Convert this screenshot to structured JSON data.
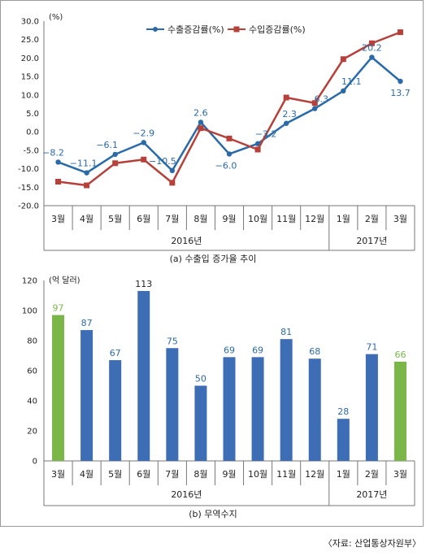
{
  "chart_data": [
    {
      "type": "line",
      "caption": "(a) 수출입 증가율 추이",
      "y_unit": "(%)",
      "ylim": [
        -20.0,
        30.0
      ],
      "y_ticks": [
        "30.0",
        "25.0",
        "20.0",
        "15.0",
        "10.0",
        "5.0",
        "0.0",
        "-5.0",
        "-10.0",
        "-15.0",
        "-20.0"
      ],
      "categories": [
        "3월",
        "4월",
        "5월",
        "6월",
        "7월",
        "8월",
        "9월",
        "10월",
        "11월",
        "12월",
        "1월",
        "2월",
        "3월"
      ],
      "year_groups": [
        {
          "label": "2016년",
          "start": 0,
          "end": 9
        },
        {
          "label": "2017년",
          "start": 10,
          "end": 12
        }
      ],
      "legend_placement": "top-center",
      "series": [
        {
          "name": "수출증감률(%)",
          "color": "#2b6aa8",
          "marker": "circle",
          "values": [
            -8.2,
            -11.1,
            -6.1,
            -2.9,
            -10.5,
            2.6,
            -6.0,
            -3.2,
            2.3,
            6.3,
            11.1,
            20.2,
            13.7
          ],
          "labels": [
            "−8.2",
            "−11.1",
            "−6.1",
            "−2.9",
            "−10.5",
            "2.6",
            "−6.0",
            "−3.2",
            "2.3",
            "6.3",
            "11.1",
            "20.2",
            "13.7"
          ]
        },
        {
          "name": "수입증감률(%)",
          "color": "#b5413a",
          "marker": "square",
          "values": [
            -13.5,
            -14.5,
            -8.5,
            -7.5,
            -13.8,
            1.0,
            -1.8,
            -4.8,
            9.3,
            7.8,
            19.7,
            24.0,
            27.0
          ]
        }
      ]
    },
    {
      "type": "bar",
      "caption": "(b) 무역수지",
      "y_unit": "(억 달러)",
      "ylim": [
        0,
        120
      ],
      "y_ticks": [
        "120",
        "100",
        "80",
        "60",
        "40",
        "20",
        "0"
      ],
      "categories": [
        "3월",
        "4월",
        "5월",
        "6월",
        "7월",
        "8월",
        "9월",
        "10월",
        "11월",
        "12월",
        "1월",
        "2월",
        "3월"
      ],
      "year_groups": [
        {
          "label": "2016년",
          "start": 0,
          "end": 9
        },
        {
          "label": "2017년",
          "start": 10,
          "end": 12
        }
      ],
      "values": [
        97,
        87,
        67,
        113,
        75,
        50,
        69,
        69,
        81,
        68,
        28,
        71,
        66
      ],
      "labels": [
        "97",
        "87",
        "67",
        "113",
        "75",
        "50",
        "69",
        "69",
        "81",
        "68",
        "28",
        "71",
        "66"
      ],
      "bar_colors": [
        "#7ab648",
        "#3d6db5",
        "#3d6db5",
        "#3d6db5",
        "#3d6db5",
        "#3d6db5",
        "#3d6db5",
        "#3d6db5",
        "#3d6db5",
        "#3d6db5",
        "#3d6db5",
        "#3d6db5",
        "#7ab648"
      ],
      "label_colors": [
        "#7ab648",
        "#2b6aa8",
        "#2b6aa8",
        "#222222",
        "#2b6aa8",
        "#2b6aa8",
        "#2b6aa8",
        "#2b6aa8",
        "#2b6aa8",
        "#2b6aa8",
        "#2b6aa8",
        "#2b6aa8",
        "#7ab648"
      ]
    }
  ],
  "source": "〈자료: 산업통상자원부〉"
}
